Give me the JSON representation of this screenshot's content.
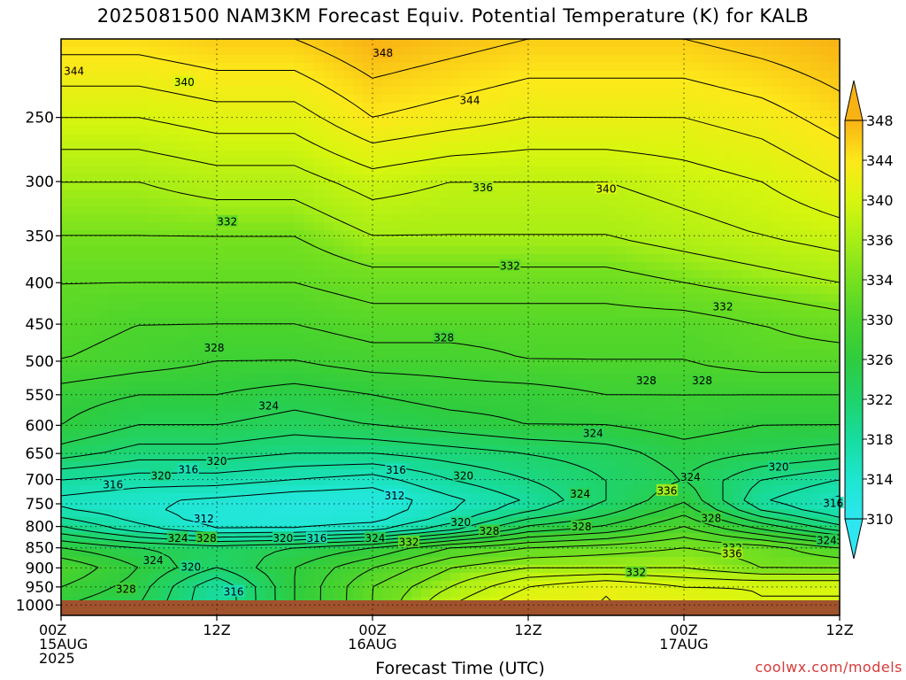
{
  "chart_data": {
    "type": "heatmap",
    "title": "2025081500 NAM3KM Forecast Equiv. Potential Temperature (K) for KALB",
    "xlabel": "Forecast Time (UTC)",
    "ylabel": "",
    "credit": "coolwx.com/models",
    "y_ticks": [
      250,
      300,
      350,
      400,
      450,
      500,
      550,
      600,
      650,
      700,
      750,
      800,
      850,
      900,
      950,
      1000
    ],
    "y_ticks_text": [
      "250",
      "300",
      "350",
      "400",
      "450",
      "500",
      "550",
      "600",
      "650",
      "700",
      "750",
      "800",
      "850",
      "900",
      "950",
      "1000"
    ],
    "ylim": [
      1030,
      200
    ],
    "y_scale": "log",
    "xlim_hours": [
      0,
      60
    ],
    "x_ticks": [
      {
        "hour": 0,
        "line1": "00Z",
        "line2": "15AUG",
        "line3": "2025"
      },
      {
        "hour": 12,
        "line1": "12Z",
        "line2": "",
        "line3": ""
      },
      {
        "hour": 24,
        "line1": "00Z",
        "line2": "16AUG",
        "line3": ""
      },
      {
        "hour": 36,
        "line1": "12Z",
        "line2": "",
        "line3": ""
      },
      {
        "hour": 48,
        "line1": "00Z",
        "line2": "17AUG",
        "line3": ""
      },
      {
        "hour": 60,
        "line1": "12Z",
        "line2": "",
        "line3": ""
      }
    ],
    "grid": true,
    "colorbar": {
      "levels": [
        310,
        314,
        318,
        322,
        326,
        330,
        334,
        336,
        340,
        344,
        348
      ],
      "labels": [
        "310",
        "314",
        "318",
        "322",
        "326",
        "330",
        "334",
        "336",
        "340",
        "344",
        "348"
      ],
      "colors": [
        "#2ee6f0",
        "#1ee6cf",
        "#17dca0",
        "#1fd36a",
        "#2fcc3e",
        "#4cd42c",
        "#77e11e",
        "#a8ee16",
        "#d8f60e",
        "#fde81a",
        "#f9b214"
      ]
    },
    "ground_pressure": 1005,
    "levels_hpa": [
      200,
      250,
      300,
      350,
      400,
      450,
      500,
      550,
      600,
      650,
      700,
      750,
      800,
      850,
      900,
      950,
      1000
    ],
    "hours": [
      0,
      6,
      12,
      18,
      24,
      30,
      36,
      42,
      48,
      54,
      60
    ],
    "theta_e": [
      [
        345,
        345,
        346,
        346,
        348,
        347,
        346,
        346,
        346,
        347,
        348
      ],
      [
        340,
        340,
        341,
        341,
        344,
        343,
        342,
        342,
        342,
        343,
        345
      ],
      [
        336,
        336,
        337,
        337,
        339,
        338,
        338,
        338,
        339,
        340,
        342
      ],
      [
        334,
        334,
        334,
        334,
        336,
        336,
        336,
        336,
        337,
        338,
        339
      ],
      [
        332,
        332,
        332,
        332,
        333,
        333,
        333,
        333,
        334,
        335,
        336
      ],
      [
        331,
        330,
        330,
        330,
        331,
        331,
        331,
        331,
        331,
        332,
        333
      ],
      [
        330,
        329,
        328,
        328,
        329,
        329,
        330,
        330,
        330,
        331,
        331
      ],
      [
        327,
        326,
        326,
        325,
        326,
        327,
        327,
        328,
        328,
        328,
        328
      ],
      [
        326,
        324,
        324,
        323,
        324,
        325,
        326,
        326,
        327,
        326,
        326
      ],
      [
        323,
        321,
        321,
        320,
        320,
        321,
        322,
        323,
        325,
        324,
        323
      ],
      [
        318,
        317,
        317,
        316,
        315,
        318,
        320,
        322,
        324,
        320,
        318
      ],
      [
        315,
        314,
        313,
        312,
        312,
        315,
        318,
        322,
        326,
        318,
        315
      ],
      [
        320,
        316,
        313,
        313,
        314,
        318,
        324,
        326,
        330,
        325,
        320
      ],
      [
        326,
        324,
        323,
        324,
        326,
        330,
        332,
        333,
        334,
        333,
        330
      ],
      [
        330,
        326,
        322,
        326,
        330,
        334,
        336,
        336,
        336,
        334,
        334
      ],
      [
        328,
        325,
        318,
        326,
        332,
        336,
        340,
        342,
        340,
        340,
        340
      ],
      [
        326,
        324,
        318,
        326,
        332,
        338,
        342,
        342,
        342,
        340,
        340
      ]
    ],
    "contour_labels": [
      {
        "text": "348",
        "hour": 24.8,
        "p": 208
      },
      {
        "text": "344",
        "hour": 1.0,
        "p": 219
      },
      {
        "text": "340",
        "hour": 9.5,
        "p": 226
      },
      {
        "text": "344",
        "hour": 31.5,
        "p": 238
      },
      {
        "text": "336",
        "hour": 32.5,
        "p": 305
      },
      {
        "text": "340",
        "hour": 42.0,
        "p": 306
      },
      {
        "text": "332",
        "hour": 12.8,
        "p": 336
      },
      {
        "text": "332",
        "hour": 34.6,
        "p": 381
      },
      {
        "text": "332",
        "hour": 51.0,
        "p": 428
      },
      {
        "text": "328",
        "hour": 11.8,
        "p": 481
      },
      {
        "text": "328",
        "hour": 29.5,
        "p": 467
      },
      {
        "text": "328",
        "hour": 45.1,
        "p": 528
      },
      {
        "text": "328",
        "hour": 49.4,
        "p": 528
      },
      {
        "text": "324",
        "hour": 16.0,
        "p": 567
      },
      {
        "text": "324",
        "hour": 41.0,
        "p": 613
      },
      {
        "text": "320",
        "hour": 12.0,
        "p": 664
      },
      {
        "text": "316",
        "hour": 9.8,
        "p": 680
      },
      {
        "text": "320",
        "hour": 7.7,
        "p": 692
      },
      {
        "text": "316",
        "hour": 4.0,
        "p": 710
      },
      {
        "text": "316",
        "hour": 25.8,
        "p": 681
      },
      {
        "text": "320",
        "hour": 31.0,
        "p": 692
      },
      {
        "text": "320",
        "hour": 55.3,
        "p": 675
      },
      {
        "text": "324",
        "hour": 48.5,
        "p": 695
      },
      {
        "text": "312",
        "hour": 25.7,
        "p": 732
      },
      {
        "text": "324",
        "hour": 40.0,
        "p": 729
      },
      {
        "text": "336",
        "hour": 46.7,
        "p": 722
      },
      {
        "text": "316",
        "hour": 59.5,
        "p": 748
      },
      {
        "text": "312",
        "hour": 11.0,
        "p": 782
      },
      {
        "text": "320",
        "hour": 30.8,
        "p": 790
      },
      {
        "text": "328",
        "hour": 50.1,
        "p": 781
      },
      {
        "text": "328",
        "hour": 40.1,
        "p": 800
      },
      {
        "text": "328",
        "hour": 33.0,
        "p": 810
      },
      {
        "text": "324",
        "hour": 9.0,
        "p": 826
      },
      {
        "text": "328",
        "hour": 11.2,
        "p": 826
      },
      {
        "text": "320",
        "hour": 17.1,
        "p": 826
      },
      {
        "text": "316",
        "hour": 19.7,
        "p": 826
      },
      {
        "text": "324",
        "hour": 24.2,
        "p": 826
      },
      {
        "text": "332",
        "hour": 26.8,
        "p": 836
      },
      {
        "text": "324",
        "hour": 59.0,
        "p": 832
      },
      {
        "text": "332",
        "hour": 51.7,
        "p": 850
      },
      {
        "text": "336",
        "hour": 51.7,
        "p": 864
      },
      {
        "text": "324",
        "hour": 7.1,
        "p": 880
      },
      {
        "text": "320",
        "hour": 10.0,
        "p": 897
      },
      {
        "text": "332",
        "hour": 44.3,
        "p": 911
      },
      {
        "text": "328",
        "hour": 5.0,
        "p": 955
      },
      {
        "text": "316",
        "hour": 13.3,
        "p": 962
      }
    ]
  }
}
